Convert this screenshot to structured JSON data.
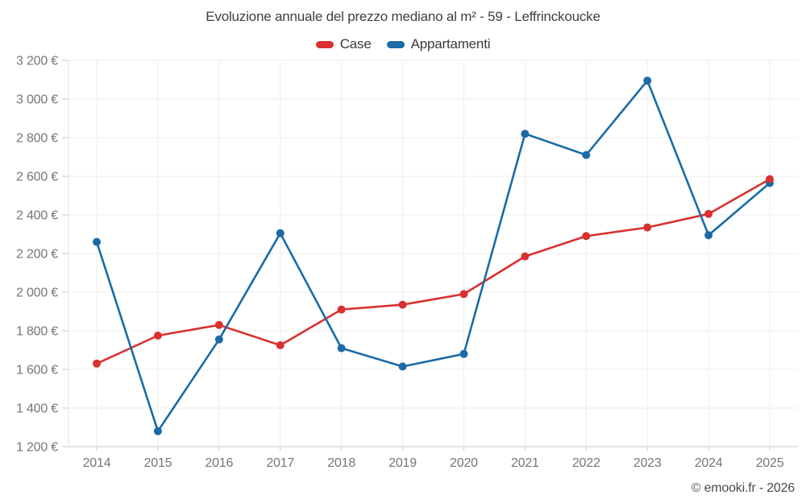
{
  "title": "Evoluzione annuale del prezzo mediano al m² - 59 - Leffrinckoucke",
  "legend": {
    "items": [
      {
        "label": "Case",
        "color": "#d9312f"
      },
      {
        "label": "Appartamenti",
        "color": "#1a6ba6"
      }
    ]
  },
  "footer": {
    "credit": "© emooki.fr - 2026"
  },
  "chart_data": {
    "type": "line",
    "title": "Evoluzione annuale del prezzo mediano al m² - 59 - Leffrinckoucke",
    "categories": [
      "2014",
      "2015",
      "2016",
      "2017",
      "2018",
      "2019",
      "2020",
      "2021",
      "2022",
      "2023",
      "2024",
      "2025"
    ],
    "series": [
      {
        "name": "Case",
        "color": "#d9312f",
        "values": [
          1630,
          1775,
          1830,
          1725,
          1910,
          1935,
          1990,
          2185,
          2290,
          2335,
          2405,
          2585
        ]
      },
      {
        "name": "Appartamenti",
        "color": "#1a6ba6",
        "values": [
          2260,
          1280,
          1755,
          2305,
          1710,
          1615,
          1680,
          2820,
          2710,
          3095,
          2295,
          2565
        ]
      }
    ],
    "xlabel": "",
    "ylabel": "",
    "ylim": [
      1200,
      3200
    ],
    "ytick_values": [
      1200,
      1400,
      1600,
      1800,
      2000,
      2200,
      2400,
      2600,
      2800,
      3000,
      3200
    ],
    "ytick_labels": [
      "1 200 €",
      "1 400 €",
      "1 600 €",
      "1 800 €",
      "2 000 €",
      "2 200 €",
      "2 400 €",
      "2 600 €",
      "2 800 €",
      "3 000 €",
      "3 200 €"
    ],
    "grid": true,
    "legend_position": "top",
    "marker": "circle"
  }
}
